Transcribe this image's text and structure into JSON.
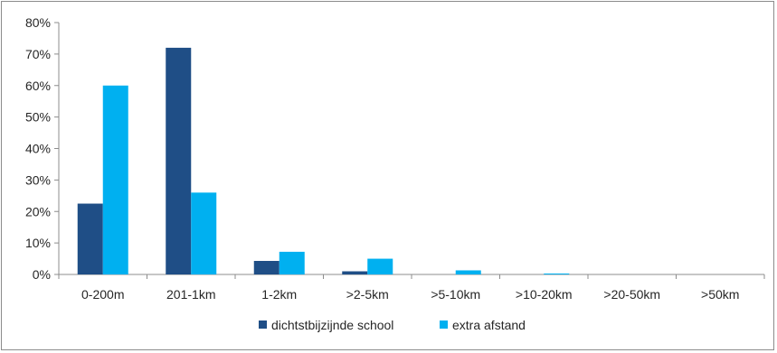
{
  "chart_data": {
    "type": "bar",
    "title": "",
    "xlabel": "",
    "ylabel": "",
    "categories": [
      "0-200m",
      "201-1km",
      "1-2km",
      ">2-5km",
      ">5-10km",
      ">10-20km",
      ">20-50km",
      ">50km"
    ],
    "series": [
      {
        "name": "dichtstbijzijnde school",
        "color": "#1f4e86",
        "values": [
          22.5,
          72,
          4.3,
          1,
          0,
          0,
          0,
          0
        ]
      },
      {
        "name": "extra afstand",
        "color": "#00b0f0",
        "values": [
          60,
          26,
          7.2,
          5,
          1.3,
          0.3,
          0,
          0
        ]
      }
    ],
    "ylim": [
      0,
      80
    ],
    "yticks": [
      "0%",
      "10%",
      "20%",
      "30%",
      "40%",
      "50%",
      "60%",
      "70%",
      "80%"
    ],
    "grid": false,
    "legend": "bottom"
  }
}
